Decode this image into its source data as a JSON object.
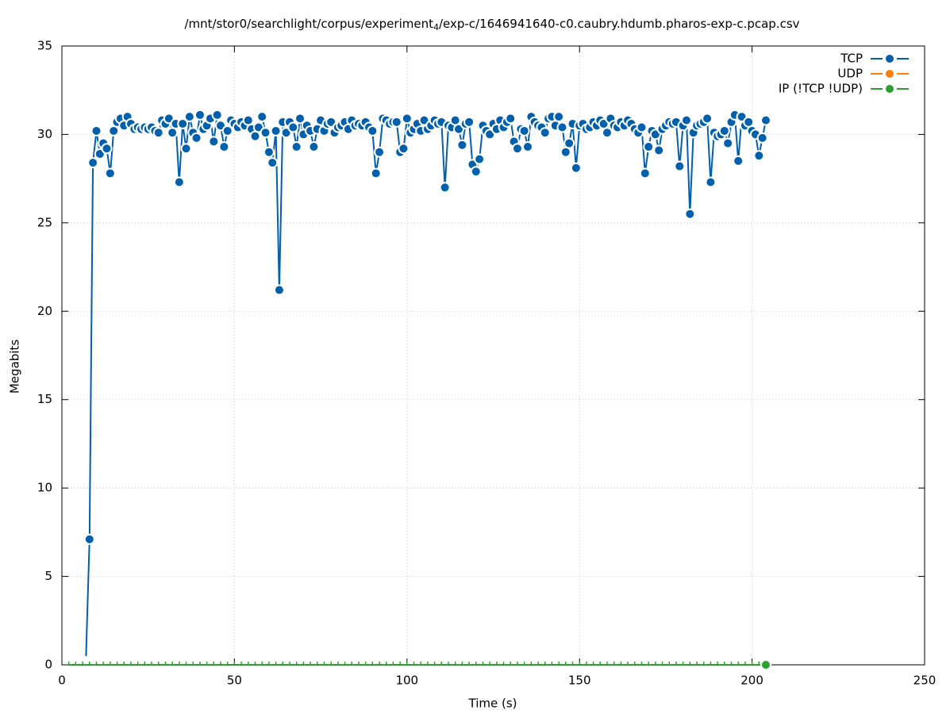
{
  "chart_data": {
    "type": "line",
    "title": [
      "/mnt/stor0/searchlight/corpus/experiment",
      "4",
      "/exp-c/1646941640-c0.caubry.hdumb.pharos-exp-c.pcap.csv"
    ],
    "x_label": "Time (s)",
    "y_label": "Megabits",
    "xlim": [
      0,
      250
    ],
    "xticks": [
      0,
      50,
      100,
      150,
      200,
      250
    ],
    "ylim": [
      0,
      35
    ],
    "yticks": [
      0,
      5,
      10,
      15,
      20,
      25,
      30,
      35
    ],
    "grid": true,
    "legend": "top-right",
    "series": [
      {
        "name": "TCP",
        "color": "#0060ad",
        "x": [
          7,
          8,
          9,
          10,
          11,
          12,
          13,
          14,
          15,
          16,
          17,
          18,
          19,
          20,
          21,
          22,
          23,
          24,
          25,
          26,
          27,
          28,
          29,
          30,
          31,
          32,
          33,
          34,
          35,
          36,
          37,
          38,
          39,
          40,
          41,
          42,
          43,
          44,
          45,
          46,
          47,
          48,
          49,
          50,
          51,
          52,
          53,
          54,
          55,
          56,
          57,
          58,
          59,
          60,
          61,
          62,
          63,
          64,
          65,
          66,
          67,
          68,
          69,
          70,
          71,
          72,
          73,
          74,
          75,
          76,
          77,
          78,
          79,
          80,
          81,
          82,
          83,
          84,
          85,
          86,
          87,
          88,
          89,
          90,
          91,
          92,
          93,
          94,
          95,
          96,
          97,
          98,
          99,
          100,
          101,
          102,
          103,
          104,
          105,
          106,
          107,
          108,
          109,
          110,
          111,
          112,
          113,
          114,
          115,
          116,
          117,
          118,
          119,
          120,
          121,
          122,
          123,
          124,
          125,
          126,
          127,
          128,
          129,
          130,
          131,
          132,
          133,
          134,
          135,
          136,
          137,
          138,
          139,
          140,
          141,
          142,
          143,
          144,
          145,
          146,
          147,
          148,
          149,
          150,
          151,
          152,
          153,
          154,
          155,
          156,
          157,
          158,
          159,
          160,
          161,
          162,
          163,
          164,
          165,
          166,
          167,
          168,
          169,
          170,
          171,
          172,
          173,
          174,
          175,
          176,
          177,
          178,
          179,
          180,
          181,
          182,
          183,
          184,
          185,
          186,
          187,
          188,
          189,
          190,
          191,
          192,
          193,
          194,
          195,
          196,
          197,
          198,
          199,
          200,
          201,
          202,
          203,
          204
        ],
        "values": [
          0.5,
          7.1,
          28.4,
          30.2,
          28.9,
          29.5,
          29.2,
          27.8,
          30.2,
          30.7,
          30.9,
          30.5,
          31.0,
          30.6,
          30.3,
          30.4,
          30.3,
          30.4,
          30.3,
          30.4,
          30.2,
          30.1,
          30.8,
          30.6,
          30.9,
          30.1,
          30.6,
          27.3,
          30.6,
          29.2,
          31.0,
          30.1,
          29.8,
          31.1,
          30.3,
          30.5,
          30.9,
          29.6,
          31.1,
          30.5,
          29.3,
          30.2,
          30.8,
          30.6,
          30.4,
          30.7,
          30.5,
          30.8,
          30.3,
          29.9,
          30.4,
          31.0,
          30.1,
          29.0,
          28.4,
          30.2,
          21.2,
          30.7,
          30.1,
          30.7,
          30.4,
          29.3,
          30.9,
          30.0,
          30.5,
          30.2,
          29.3,
          30.3,
          30.8,
          30.2,
          30.6,
          30.7,
          30.1,
          30.4,
          30.5,
          30.7,
          30.3,
          30.8,
          30.5,
          30.6,
          30.5,
          30.7,
          30.4,
          30.2,
          27.8,
          29.0,
          30.9,
          30.8,
          30.6,
          30.7,
          30.7,
          29.0,
          29.2,
          30.9,
          30.1,
          30.3,
          30.6,
          30.2,
          30.8,
          30.3,
          30.5,
          30.8,
          30.6,
          30.7,
          27.0,
          30.5,
          30.4,
          30.8,
          30.3,
          29.4,
          30.6,
          30.7,
          28.3,
          27.9,
          28.6,
          30.5,
          30.2,
          30.0,
          30.6,
          30.3,
          30.8,
          30.4,
          30.7,
          30.9,
          29.6,
          29.2,
          30.3,
          30.2,
          29.3,
          31.0,
          30.7,
          30.5,
          30.4,
          30.1,
          30.9,
          31.0,
          30.5,
          31.0,
          30.4,
          29.0,
          29.5,
          30.6,
          28.1,
          30.5,
          30.6,
          30.3,
          30.4,
          30.7,
          30.5,
          30.8,
          30.6,
          30.1,
          30.9,
          30.5,
          30.4,
          30.7,
          30.5,
          30.8,
          30.6,
          30.3,
          30.1,
          30.4,
          27.8,
          29.3,
          30.2,
          30.0,
          29.1,
          30.3,
          30.5,
          30.7,
          30.6,
          30.7,
          28.2,
          30.5,
          30.8,
          25.5,
          30.1,
          30.5,
          30.6,
          30.7,
          30.9,
          27.3,
          30.1,
          29.9,
          30.0,
          30.2,
          29.5,
          30.7,
          31.1,
          28.5,
          31.0,
          30.5,
          30.7,
          30.2,
          30.0,
          28.8,
          29.8,
          30.8
        ]
      },
      {
        "name": "UDP",
        "color": "#ff7f0e",
        "x": [],
        "values": []
      },
      {
        "name": "IP (!TCP  !UDP)",
        "color": "#2ca02c",
        "x": [
          2,
          4,
          6,
          8,
          10,
          12,
          14,
          16,
          18,
          20,
          22,
          24,
          26,
          28,
          30,
          32,
          34,
          36,
          38,
          40,
          42,
          44,
          46,
          48,
          50,
          52,
          54,
          56,
          58,
          60,
          62,
          64,
          66,
          68,
          70,
          72,
          74,
          76,
          78,
          80,
          82,
          84,
          86,
          88,
          90,
          92,
          94,
          96,
          98,
          100,
          102,
          104,
          106,
          108,
          110,
          112,
          114,
          116,
          118,
          120,
          122,
          124,
          126,
          128,
          130,
          132,
          134,
          136,
          138,
          140,
          142,
          144,
          146,
          148,
          150,
          152,
          154,
          156,
          158,
          160,
          162,
          164,
          166,
          168,
          170,
          172,
          174,
          176,
          178,
          180,
          182,
          184,
          186,
          188,
          190,
          192,
          194,
          196,
          198,
          200,
          202,
          204
        ],
        "values": [
          0,
          0,
          0,
          0,
          0,
          0,
          0,
          0,
          0,
          0,
          0,
          0,
          0,
          0,
          0,
          0,
          0,
          0,
          0,
          0,
          0,
          0,
          0,
          0,
          0,
          0,
          0,
          0,
          0,
          0,
          0,
          0,
          0,
          0,
          0,
          0,
          0,
          0,
          0,
          0,
          0,
          0,
          0,
          0,
          0,
          0,
          0,
          0,
          0,
          0,
          0,
          0,
          0,
          0,
          0,
          0,
          0,
          0,
          0,
          0,
          0,
          0,
          0,
          0,
          0,
          0,
          0,
          0,
          0,
          0,
          0,
          0,
          0,
          0,
          0,
          0,
          0,
          0,
          0,
          0,
          0,
          0,
          0,
          0,
          0,
          0,
          0,
          0,
          0,
          0,
          0,
          0,
          0,
          0,
          0,
          0,
          0,
          0,
          0,
          0,
          0,
          0
        ]
      }
    ]
  }
}
